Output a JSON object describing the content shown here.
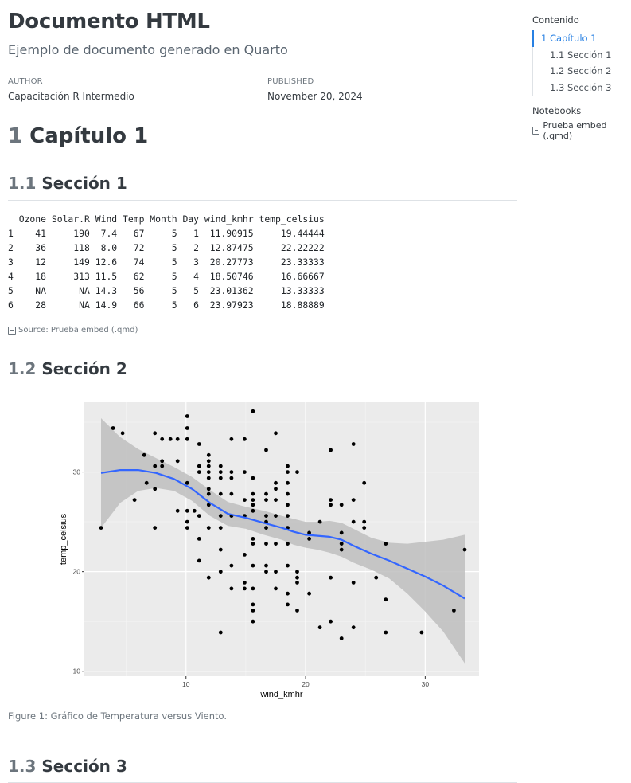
{
  "doc": {
    "title": "Documento HTML",
    "subtitle": "Ejemplo de documento generado en Quarto",
    "author_heading": "AUTHOR",
    "author": "Capacitación R Intermedio",
    "published_heading": "PUBLISHED",
    "published": "November 20, 2024"
  },
  "chapter": {
    "number": "1",
    "title": "Capítulo 1"
  },
  "sections": [
    {
      "number": "1.1",
      "title": "Sección 1"
    },
    {
      "number": "1.2",
      "title": "Sección 2"
    },
    {
      "number": "1.3",
      "title": "Sección 3"
    }
  ],
  "table": {
    "headers": [
      "Ozone",
      "Solar.R",
      "Wind",
      "Temp",
      "Month",
      "Day",
      "wind_kmhr",
      "temp_celsius"
    ],
    "rows": [
      [
        "1",
        "41",
        "190",
        "7.4",
        "67",
        "5",
        "1",
        "11.90915",
        "19.44444"
      ],
      [
        "2",
        "36",
        "118",
        "8.0",
        "72",
        "5",
        "2",
        "12.87475",
        "22.22222"
      ],
      [
        "3",
        "12",
        "149",
        "12.6",
        "74",
        "5",
        "3",
        "20.27773",
        "23.33333"
      ],
      [
        "4",
        "18",
        "313",
        "11.5",
        "62",
        "5",
        "4",
        "18.50746",
        "16.66667"
      ],
      [
        "5",
        "NA",
        "NA",
        "14.3",
        "56",
        "5",
        "5",
        "23.01362",
        "13.33333"
      ],
      [
        "6",
        "28",
        "NA",
        "14.9",
        "66",
        "5",
        "6",
        "23.97923",
        "18.88889"
      ]
    ]
  },
  "source_label": "Source: Prueba embed (.qmd)",
  "figure_caption": "Figure 1: Gráfico de Temperatura versus Viento.",
  "toc": {
    "title": "Contenido",
    "items": [
      "1 Capítulo 1",
      "1.1 Sección 1",
      "1.2 Sección 2",
      "1.3 Sección 3"
    ],
    "notebooks_title": "Notebooks",
    "notebook_link": "Prueba embed (.qmd)"
  },
  "colors": {
    "accent": "#2780e3",
    "smooth_line": "#3366ff",
    "panel": "#ebebeb",
    "ribbon": "#bebebe"
  },
  "chart_data": {
    "type": "scatter",
    "title": "",
    "xlabel": "wind_kmhr",
    "ylabel": "temp_celsius",
    "xlim": [
      1.5,
      34.5
    ],
    "ylim": [
      9.5,
      37
    ],
    "x_ticks": [
      10,
      20,
      30
    ],
    "y_ticks": [
      10,
      20,
      30
    ],
    "grid": true,
    "points": [
      [
        2.9,
        24.4
      ],
      [
        3.9,
        34.4
      ],
      [
        4.7,
        33.9
      ],
      [
        5.7,
        27.2
      ],
      [
        6.5,
        31.7
      ],
      [
        6.7,
        28.9
      ],
      [
        7.4,
        30.6
      ],
      [
        7.4,
        33.9
      ],
      [
        7.4,
        28.3
      ],
      [
        7.4,
        24.4
      ],
      [
        8.0,
        33.3
      ],
      [
        8.0,
        31.1
      ],
      [
        8.0,
        30.6
      ],
      [
        8.7,
        33.3
      ],
      [
        9.3,
        33.3
      ],
      [
        9.3,
        31.1
      ],
      [
        9.3,
        26.1
      ],
      [
        10.1,
        35.6
      ],
      [
        10.1,
        34.4
      ],
      [
        10.1,
        33.3
      ],
      [
        10.1,
        28.9
      ],
      [
        10.1,
        26.1
      ],
      [
        10.1,
        25.0
      ],
      [
        10.1,
        24.4
      ],
      [
        10.7,
        26.1
      ],
      [
        11.1,
        32.8
      ],
      [
        11.1,
        30.6
      ],
      [
        11.1,
        30.0
      ],
      [
        11.1,
        25.6
      ],
      [
        11.1,
        23.3
      ],
      [
        11.1,
        21.1
      ],
      [
        11.9,
        31.7
      ],
      [
        11.9,
        31.1
      ],
      [
        11.9,
        30.6
      ],
      [
        11.9,
        30.0
      ],
      [
        11.9,
        29.4
      ],
      [
        11.9,
        28.3
      ],
      [
        11.9,
        27.8
      ],
      [
        11.9,
        26.7
      ],
      [
        11.9,
        24.4
      ],
      [
        11.9,
        19.4
      ],
      [
        12.9,
        30.6
      ],
      [
        12.9,
        30.0
      ],
      [
        12.9,
        29.4
      ],
      [
        12.9,
        27.8
      ],
      [
        12.9,
        25.6
      ],
      [
        12.9,
        24.4
      ],
      [
        12.9,
        22.2
      ],
      [
        12.9,
        20.0
      ],
      [
        12.9,
        13.9
      ],
      [
        13.8,
        33.3
      ],
      [
        13.8,
        30.0
      ],
      [
        13.8,
        29.4
      ],
      [
        13.8,
        27.8
      ],
      [
        13.8,
        25.6
      ],
      [
        13.8,
        20.6
      ],
      [
        13.8,
        18.3
      ],
      [
        14.9,
        33.3
      ],
      [
        14.9,
        30.0
      ],
      [
        14.9,
        27.2
      ],
      [
        14.9,
        25.6
      ],
      [
        14.9,
        21.7
      ],
      [
        14.9,
        18.9
      ],
      [
        14.9,
        18.3
      ],
      [
        15.6,
        36.1
      ],
      [
        15.6,
        29.4
      ],
      [
        15.6,
        27.8
      ],
      [
        15.6,
        27.2
      ],
      [
        15.6,
        26.7
      ],
      [
        15.6,
        26.1
      ],
      [
        15.6,
        23.3
      ],
      [
        15.6,
        22.8
      ],
      [
        15.6,
        20.6
      ],
      [
        15.6,
        18.3
      ],
      [
        15.6,
        16.7
      ],
      [
        15.6,
        16.1
      ],
      [
        15.6,
        15.0
      ],
      [
        16.7,
        32.2
      ],
      [
        16.7,
        27.8
      ],
      [
        16.7,
        27.2
      ],
      [
        16.7,
        25.6
      ],
      [
        16.7,
        25.0
      ],
      [
        16.7,
        24.4
      ],
      [
        16.7,
        22.8
      ],
      [
        16.7,
        20.6
      ],
      [
        16.7,
        20.0
      ],
      [
        17.5,
        33.9
      ],
      [
        17.5,
        28.9
      ],
      [
        17.5,
        28.3
      ],
      [
        17.5,
        27.2
      ],
      [
        17.5,
        25.6
      ],
      [
        17.5,
        22.8
      ],
      [
        17.5,
        20.0
      ],
      [
        17.5,
        18.3
      ],
      [
        18.5,
        30.6
      ],
      [
        18.5,
        30.0
      ],
      [
        18.5,
        28.9
      ],
      [
        18.5,
        27.8
      ],
      [
        18.5,
        26.7
      ],
      [
        18.5,
        25.6
      ],
      [
        18.5,
        24.4
      ],
      [
        18.5,
        22.8
      ],
      [
        18.5,
        20.6
      ],
      [
        18.5,
        17.8
      ],
      [
        18.5,
        16.7
      ],
      [
        19.3,
        30.0
      ],
      [
        19.3,
        20.0
      ],
      [
        19.3,
        19.4
      ],
      [
        19.3,
        18.9
      ],
      [
        19.3,
        16.1
      ],
      [
        20.3,
        23.9
      ],
      [
        20.3,
        23.3
      ],
      [
        20.3,
        17.8
      ],
      [
        21.2,
        25.0
      ],
      [
        21.2,
        14.4
      ],
      [
        22.1,
        32.2
      ],
      [
        22.1,
        27.2
      ],
      [
        22.1,
        26.7
      ],
      [
        22.1,
        19.4
      ],
      [
        22.1,
        15.0
      ],
      [
        23.0,
        26.7
      ],
      [
        23.0,
        23.9
      ],
      [
        23.0,
        22.8
      ],
      [
        23.0,
        22.2
      ],
      [
        23.0,
        13.3
      ],
      [
        24.0,
        32.8
      ],
      [
        24.0,
        27.2
      ],
      [
        24.0,
        25.0
      ],
      [
        24.0,
        18.9
      ],
      [
        24.0,
        14.4
      ],
      [
        24.9,
        28.9
      ],
      [
        24.9,
        25.0
      ],
      [
        24.9,
        24.4
      ],
      [
        25.9,
        19.4
      ],
      [
        26.7,
        22.8
      ],
      [
        26.7,
        17.2
      ],
      [
        26.7,
        13.9
      ],
      [
        29.7,
        13.9
      ],
      [
        32.4,
        16.1
      ],
      [
        33.3,
        22.2
      ]
    ],
    "smooth": [
      [
        2.9,
        29.9
      ],
      [
        4.5,
        30.2
      ],
      [
        6.0,
        30.2
      ],
      [
        7.5,
        29.9
      ],
      [
        9.0,
        29.3
      ],
      [
        10.5,
        28.3
      ],
      [
        12.0,
        26.9
      ],
      [
        13.5,
        25.8
      ],
      [
        15.0,
        25.4
      ],
      [
        16.5,
        24.9
      ],
      [
        18.0,
        24.4
      ],
      [
        19.0,
        24.0
      ],
      [
        20.0,
        23.7
      ],
      [
        21.0,
        23.6
      ],
      [
        22.0,
        23.5
      ],
      [
        23.0,
        23.2
      ],
      [
        24.0,
        22.6
      ],
      [
        25.5,
        21.8
      ],
      [
        27.0,
        21.1
      ],
      [
        28.5,
        20.3
      ],
      [
        30.0,
        19.5
      ],
      [
        31.5,
        18.6
      ],
      [
        33.3,
        17.3
      ]
    ],
    "ribbon_upper": [
      [
        2.9,
        35.4
      ],
      [
        4.5,
        33.5
      ],
      [
        6.0,
        32.3
      ],
      [
        7.5,
        31.4
      ],
      [
        9.0,
        30.5
      ],
      [
        10.5,
        29.5
      ],
      [
        12.0,
        28.2
      ],
      [
        13.5,
        27.0
      ],
      [
        15.0,
        26.5
      ],
      [
        16.5,
        26.1
      ],
      [
        18.0,
        25.6
      ],
      [
        19.0,
        25.3
      ],
      [
        20.0,
        25.0
      ],
      [
        21.0,
        25.0
      ],
      [
        22.0,
        25.1
      ],
      [
        23.0,
        24.9
      ],
      [
        24.0,
        24.3
      ],
      [
        25.5,
        23.4
      ],
      [
        27.0,
        22.9
      ],
      [
        28.5,
        22.8
      ],
      [
        30.0,
        23.0
      ],
      [
        31.5,
        23.2
      ],
      [
        33.3,
        23.7
      ]
    ],
    "ribbon_lower": [
      [
        2.9,
        24.4
      ],
      [
        4.5,
        26.9
      ],
      [
        6.0,
        28.1
      ],
      [
        7.5,
        28.4
      ],
      [
        9.0,
        28.1
      ],
      [
        10.5,
        27.1
      ],
      [
        12.0,
        25.6
      ],
      [
        13.5,
        24.6
      ],
      [
        15.0,
        24.3
      ],
      [
        16.5,
        23.7
      ],
      [
        18.0,
        23.2
      ],
      [
        19.0,
        22.7
      ],
      [
        20.0,
        22.4
      ],
      [
        21.0,
        22.2
      ],
      [
        22.0,
        21.9
      ],
      [
        23.0,
        21.5
      ],
      [
        24.0,
        20.9
      ],
      [
        25.5,
        20.2
      ],
      [
        27.0,
        19.3
      ],
      [
        28.5,
        17.8
      ],
      [
        30.0,
        16.0
      ],
      [
        31.5,
        14.0
      ],
      [
        33.3,
        10.8
      ]
    ]
  }
}
